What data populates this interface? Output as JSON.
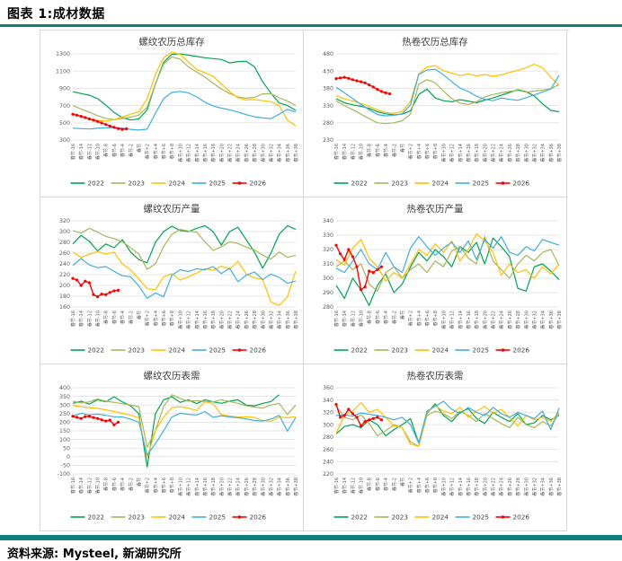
{
  "header": {
    "title": "图表 1:成材数据"
  },
  "footer": {
    "source": "资料来源: Mysteel, 新湖研究所"
  },
  "colors": {
    "accent_teal": "#0E7F7C",
    "panel_border": "#D9D9D9",
    "grid_line": "#DCDCDC",
    "axis_text": "#595959",
    "title_text": "#404040"
  },
  "chart_data": {
    "type": "line",
    "legend_position": "bottom",
    "grid": true,
    "x_labels": [
      "春节-16",
      "春节-14",
      "春节-12",
      "春节-10",
      "春节-8",
      "春节-6",
      "春节-4",
      "春节-2",
      "春节",
      "春节+2",
      "春节+4",
      "春节+6",
      "春节+8",
      "春节+10",
      "春节+12",
      "春节+14",
      "春节+16",
      "春节+18",
      "春节+20",
      "春节+22",
      "春节+24",
      "春节+26",
      "春节+28",
      "春节+30",
      "春节+32",
      "春节+34",
      "春节+36",
      "春节+38"
    ],
    "series_colors": {
      "2022": "#00A550",
      "2023": "#A6B75B",
      "2024": "#FFC000",
      "2025": "#41AEE1",
      "2026": "#FF0000"
    },
    "charts": [
      {
        "title": "螺纹农历总库存",
        "ylim": [
          300,
          1300
        ],
        "ytick": 200,
        "series": [
          {
            "name": "2022",
            "values": [
              860,
              840,
              820,
              780,
              705,
              620,
              560,
              532,
              545,
              650,
              950,
              1200,
              1295,
              1300,
              1285,
              1270,
              1255,
              1245,
              1235,
              1195,
              1210,
              1215,
              1150,
              975,
              845,
              730,
              700,
              645
            ]
          },
          {
            "name": "2023",
            "values": [
              700,
              660,
              622,
              582,
              552,
              536,
              550,
              566,
              590,
              680,
              950,
              1180,
              1265,
              1240,
              1150,
              1090,
              1030,
              960,
              890,
              840,
              800,
              785,
              795,
              835,
              838,
              790,
              752,
              700
            ]
          },
          {
            "name": "2024",
            "values": [
              605,
              578,
              550,
              526,
              520,
              536,
              566,
              600,
              628,
              780,
              1060,
              1255,
              1320,
              1295,
              1205,
              1120,
              1080,
              1040,
              950,
              862,
              790,
              766,
              770,
              756,
              745,
              700,
              530,
              465
            ]
          },
          {
            "name": "2025",
            "values": [
              438,
              432,
              428,
              436,
              442,
              446,
              438,
              424,
              416,
              426,
              610,
              780,
              852,
              865,
              848,
              800,
              740,
              695,
              670,
              650,
              625,
              595,
              570,
              556,
              548,
              600,
              655,
              625
            ]
          },
          {
            "name": "2026",
            "dx": 0.5,
            "markers": true,
            "values": [
              600,
              588,
              575,
              560,
              545,
              530,
              516,
              498,
              480,
              462,
              448,
              432,
              424,
              430
            ]
          }
        ]
      },
      {
        "title": "热卷农历总库存",
        "ylim": [
          230,
          480
        ],
        "ytick": 50,
        "series": [
          {
            "name": "2022",
            "values": [
              350,
              338,
              332,
              328,
              322,
              312,
              306,
              303,
              305,
              315,
              362,
              378,
              352,
              344,
              341,
              347,
              343,
              338,
              346,
              352,
              360,
              368,
              376,
              370,
              358,
              335,
              316,
              312
            ]
          },
          {
            "name": "2023",
            "values": [
              344,
              330,
              318,
              305,
              292,
              280,
              278,
              280,
              286,
              305,
              392,
              405,
              396,
              372,
              350,
              337,
              333,
              341,
              355,
              362,
              367,
              371,
              374,
              369,
              372,
              375,
              379,
              391
            ]
          },
          {
            "name": "2024",
            "values": [
              358,
              350,
              343,
              336,
              328,
              317,
              310,
              307,
              312,
              342,
              422,
              442,
              446,
              431,
              424,
              417,
              422,
              416,
              420,
              415,
              419,
              426,
              432,
              440,
              450,
              440,
              412,
              389
            ]
          },
          {
            "name": "2025",
            "values": [
              383,
              367,
              350,
              333,
              318,
              304,
              300,
              302,
              306,
              332,
              420,
              433,
              435,
              419,
              399,
              381,
              371,
              357,
              348,
              344,
              352,
              348,
              345,
              353,
              361,
              369,
              378,
              418
            ]
          },
          {
            "name": "2026",
            "dx": 0.5,
            "markers": true,
            "values": [
              408,
              410,
              412,
              409,
              405,
              402,
              399,
              396,
              390,
              384,
              377,
              371,
              367,
              364
            ]
          }
        ]
      },
      {
        "title": "螺纹农历产量",
        "ylim": [
          160,
          320
        ],
        "ytick": 20,
        "series": [
          {
            "name": "2022",
            "values": [
              277,
              293,
              282,
              264,
              277,
              270,
              285,
              262,
              248,
              242,
              280,
              300,
              310,
              302,
              300,
              306,
              311,
              300,
              275,
              300,
              308,
              285,
              262,
              232,
              260,
              295,
              311,
              304
            ]
          },
          {
            "name": "2023",
            "values": [
              302,
              297,
              306,
              299,
              291,
              287,
              281,
              270,
              258,
              230,
              240,
              272,
              295,
              304,
              301,
              299,
              281,
              265,
              272,
              281,
              278,
              271,
              266,
              256,
              249,
              262,
              252,
              256
            ]
          },
          {
            "name": "2024",
            "values": [
              262,
              252,
              258,
              263,
              258,
              262,
              240,
              229,
              212,
              194,
              192,
              216,
              222,
              210,
              216,
              223,
              231,
              228,
              236,
              230,
              245,
              221,
              214,
              211,
              169,
              163,
              179,
              227
            ]
          },
          {
            "name": "2025",
            "values": [
              237,
              250,
              238,
              233,
              235,
              226,
              218,
              216,
              199,
              176,
              186,
              179,
              219,
              229,
              226,
              231,
              229,
              235,
              222,
              232,
              207,
              219,
              225,
              211,
              221,
              215,
              204,
              208
            ]
          },
          {
            "name": "2026",
            "dx": 0.5,
            "markers": true,
            "values": [
              213,
              210,
              200,
              208,
              205,
              183,
              179,
              184,
              183,
              187,
              190,
              191
            ]
          }
        ]
      },
      {
        "title": "热卷农历产量",
        "ylim": [
          280,
          340
        ],
        "ytick": 10,
        "series": [
          {
            "name": "2022",
            "values": [
              295,
              286,
              300,
              292,
              281,
              295,
              303,
              290,
              296,
              308,
              318,
              312,
              320,
              315,
              308,
              322,
              318,
              325,
              310,
              328,
              322,
              315,
              293,
              291,
              308,
              310,
              305,
              299
            ]
          },
          {
            "name": "2023",
            "values": [
              308,
              312,
              306,
              310,
              296,
              291,
              304,
              308,
              300,
              306,
              310,
              304,
              312,
              308,
              319,
              322,
              314,
              310,
              329,
              312,
              306,
              300,
              310,
              316,
              312,
              318,
              320,
              309
            ]
          },
          {
            "name": "2024",
            "values": [
              313,
              309,
              321,
              327,
              314,
              308,
              298,
              304,
              300,
              310,
              320,
              316,
              324,
              318,
              326,
              312,
              320,
              331,
              326,
              318,
              302,
              310,
              304,
              306,
              300,
              308,
              303,
              310
            ]
          },
          {
            "name": "2025",
            "values": [
              307,
              304,
              312,
              320,
              310,
              306,
              318,
              308,
              304,
              321,
              329,
              322,
              316,
              321,
              325,
              318,
              326,
              313,
              327,
              321,
              329,
              318,
              316,
              322,
              319,
              327,
              325,
              323
            ]
          },
          {
            "name": "2026",
            "dx": 0.5,
            "markers": true,
            "values": [
              323,
              317,
              313,
              320,
              315,
              308,
              292,
              294,
              305,
              304,
              306,
              308
            ]
          }
        ]
      },
      {
        "title": "螺纹农历表需",
        "ylim": [
          -100,
          400
        ],
        "ytick": 50,
        "series": [
          {
            "name": "2022",
            "values": [
              310,
              322,
              305,
              330,
              318,
              348,
              318,
              295,
              250,
              -60,
              250,
              330,
              348,
              315,
              330,
              308,
              330,
              318,
              310,
              322,
              330,
              300,
              295,
              310,
              320,
              360
            ]
          },
          {
            "name": "2023",
            "values": [
              322,
              312,
              318,
              335,
              322,
              315,
              308,
              300,
              290,
              55,
              150,
              290,
              360,
              338,
              322,
              325,
              320,
              318,
              330,
              320,
              310,
              296,
              288,
              282,
              300,
              310,
              245,
              300
            ]
          },
          {
            "name": "2024",
            "values": [
              298,
              290,
              285,
              280,
              272,
              262,
              252,
              240,
              226,
              -5,
              150,
              230,
              285,
              290,
              282,
              268,
              318,
              308,
              244,
              236,
              230,
              232,
              228,
              210,
              205,
              230,
              226,
              232
            ]
          },
          {
            "name": "2025",
            "values": [
              235,
              252,
              242,
              247,
              240,
              232,
              230,
              218,
              200,
              10,
              75,
              150,
              230,
              252,
              246,
              242,
              262,
              228,
              238,
              230,
              226,
              220,
              210,
              207,
              218,
              240,
              148,
              228
            ]
          },
          {
            "name": "2026",
            "dx": 0.5,
            "markers": true,
            "values": [
              235,
              228,
              222,
              233,
              235,
              227,
              222,
              214,
              207,
              212,
              185,
              200
            ]
          }
        ]
      },
      {
        "title": "热卷农历表需",
        "ylim": [
          220,
          360
        ],
        "ytick": 20,
        "series": [
          {
            "name": "2022",
            "values": [
              285,
              297,
              300,
              295,
              308,
              300,
              282,
              292,
              300,
              310,
              270,
              318,
              334,
              315,
              305,
              320,
              326,
              310,
              302,
              320,
              312,
              305,
              318,
              300,
              303,
              315,
              308,
              315
            ]
          },
          {
            "name": "2023",
            "values": [
              330,
              312,
              308,
              316,
              302,
              282,
              290,
              300,
              295,
              272,
              265,
              315,
              322,
              318,
              310,
              322,
              315,
              305,
              318,
              310,
              302,
              295,
              312,
              300,
              295,
              305,
              298,
              318
            ]
          },
          {
            "name": "2024",
            "values": [
              286,
              315,
              322,
              336,
              320,
              325,
              312,
              298,
              295,
              268,
              265,
              320,
              331,
              322,
              318,
              328,
              312,
              322,
              330,
              318,
              325,
              312,
              298,
              315,
              308,
              312,
              305,
              320
            ]
          },
          {
            "name": "2025",
            "values": [
              315,
              316,
              314,
              319,
              317,
              315,
              312,
              308,
              312,
              300,
              270,
              322,
              330,
              338,
              325,
              318,
              328,
              320,
              315,
              328,
              318,
              312,
              320,
              315,
              310,
              322,
              292,
              327
            ]
          },
          {
            "name": "2026",
            "dx": 0.5,
            "markers": true,
            "values": [
              333,
              312,
              315,
              325,
              318,
              312,
              298,
              305,
              308,
              310,
              312,
              308
            ]
          }
        ]
      }
    ]
  }
}
